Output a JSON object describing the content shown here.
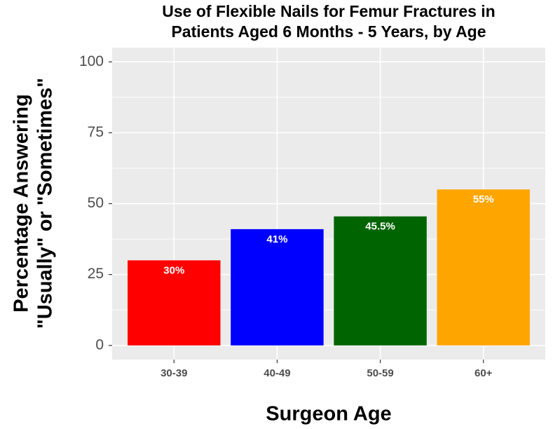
{
  "chart_data": {
    "type": "bar",
    "title": [
      "Use of Flexible Nails for Femur Fractures in",
      "Patients Aged 6 Months - 5 Years, by Age"
    ],
    "x_label": "Surgeon Age",
    "y_label": [
      "Percentage Answering",
      "\"Usually\" or \"Sometimes\""
    ],
    "categories": [
      "30-39",
      "40-49",
      "50-59",
      "60+"
    ],
    "values": [
      30,
      41,
      45.5,
      55
    ],
    "value_labels": [
      "30%",
      "41%",
      "45.5%",
      "55%"
    ],
    "colors": [
      "#ff0000",
      "#0000ff",
      "#006400",
      "#ffa500"
    ],
    "ylim": [
      -5,
      105
    ],
    "yticks": [
      0,
      25,
      50,
      75,
      100
    ],
    "grid": true
  }
}
